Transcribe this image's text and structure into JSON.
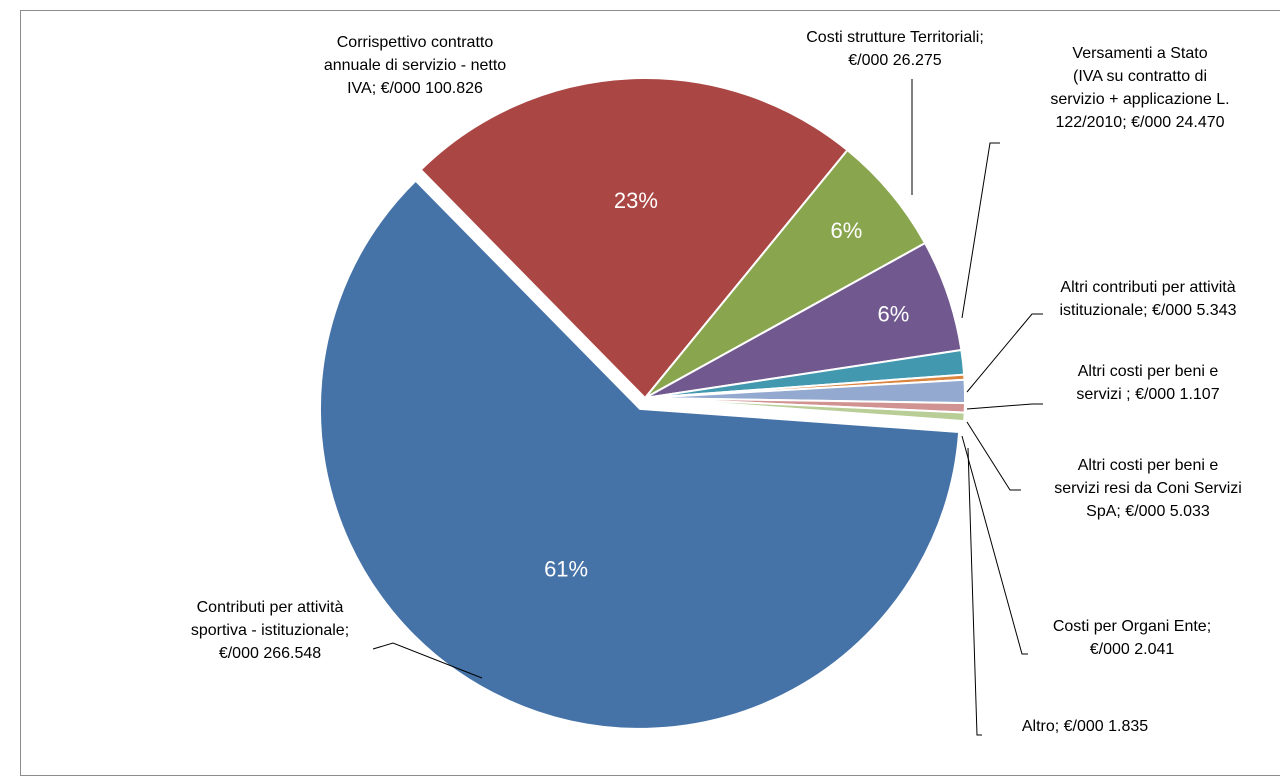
{
  "chart_data": {
    "type": "pie",
    "title": "",
    "slices": [
      {
        "name": "Contributi per attività sportiva - istituzionale",
        "value": 266548,
        "color": "#4572A7",
        "percent_label": "61%",
        "label_lines": [
          "Contributi per attività",
          "sportiva - istituzionale;",
          "€/000 266.548"
        ]
      },
      {
        "name": "Corrispettivo contratto annuale di servizio - netto IVA",
        "value": 100826,
        "color": "#AA4643",
        "percent_label": "23%",
        "label_lines": [
          "Corrispettivo contratto",
          "annuale di servizio - netto",
          "IVA;  €/000 100.826"
        ]
      },
      {
        "name": "Costi strutture Territoriali",
        "value": 26275,
        "color": "#89A54E",
        "percent_label": "6%",
        "label_lines": [
          "Costi strutture Territoriali;",
          "€/000 26.275"
        ]
      },
      {
        "name": "Versamenti a Stato (IVA su contratto di servizio + applicazione L. 122/2010",
        "value": 24470,
        "color": "#71588F",
        "percent_label": "6%",
        "label_lines": [
          "Versamenti a Stato",
          "(IVA su contratto di",
          "servizio + applicazione L.",
          "122/2010;  €/000 24.470"
        ]
      },
      {
        "name": "Altri contributi per attività istituzionale",
        "value": 5343,
        "color": "#4198AF",
        "percent_label": "",
        "label_lines": [
          "Altri contributi per attività",
          "istituzionale;  €/000 5.343"
        ]
      },
      {
        "name": "Altri costi per beni e servizi",
        "value": 1107,
        "color": "#DB843D",
        "percent_label": "",
        "label_lines": [
          "Altri costi per beni e",
          "servizi  ;  €/000 1.107"
        ]
      },
      {
        "name": "Altri costi per beni e servizi resi da Coni Servizi SpA",
        "value": 5033,
        "color": "#93A9CF",
        "percent_label": "",
        "label_lines": [
          "Altri costi per beni e",
          "servizi resi da Coni Servizi",
          "SpA;  €/000 5.033"
        ]
      },
      {
        "name": "Costi per Organi Ente",
        "value": 2041,
        "color": "#D19392",
        "percent_label": "",
        "label_lines": [
          "Costi per Organi Ente;",
          "€/000 2.041"
        ]
      },
      {
        "name": "Altro",
        "value": 1835,
        "color": "#B9CD96",
        "percent_label": "",
        "label_lines": [
          "Altro;  €/000 1.835"
        ]
      }
    ]
  }
}
